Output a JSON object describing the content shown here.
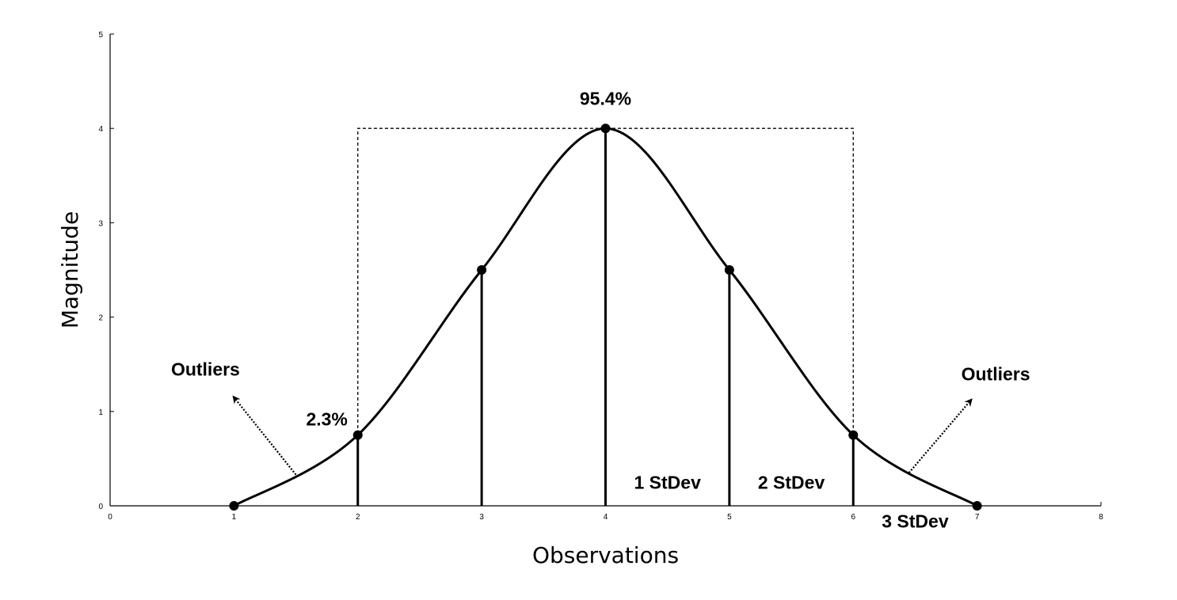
{
  "chart_data": {
    "type": "line",
    "title": "",
    "xlabel": "Observations",
    "ylabel": "Magnitude",
    "xlim": [
      0,
      8
    ],
    "ylim": [
      0,
      5
    ],
    "x_ticks": [
      0,
      1,
      2,
      3,
      4,
      5,
      6,
      7,
      8
    ],
    "y_ticks": [
      0,
      1,
      2,
      3,
      4,
      5
    ],
    "grid": false,
    "series": [
      {
        "points": [
          [
            1,
            0
          ],
          [
            2,
            0.75
          ],
          [
            3,
            2.5
          ],
          [
            4,
            4
          ],
          [
            5,
            2.5
          ],
          [
            6,
            0.75
          ],
          [
            7,
            0
          ]
        ]
      }
    ],
    "vertical_lines": [
      2,
      3,
      4,
      5,
      6
    ],
    "dashed_box": {
      "x": [
        2,
        6
      ],
      "y_top": 4
    },
    "annotations": [
      {
        "text": "95.4%",
        "x": 4,
        "y": 4.25
      },
      {
        "text": "2.3%",
        "x": 1.75,
        "y": 0.85
      },
      {
        "text": "1 StDev",
        "x": 4.5,
        "y": 0.18
      },
      {
        "text": "2 StDev",
        "x": 5.5,
        "y": 0.18
      },
      {
        "text": "3 StDev",
        "x": 6.5,
        "y": -0.23
      },
      {
        "text": "Outliers",
        "x": 0.77,
        "y": 1.38
      },
      {
        "text": "Outliers",
        "x": 7.15,
        "y": 1.33
      }
    ],
    "arrows": [
      {
        "from": [
          1.5,
          0.33
        ],
        "to": [
          1.0,
          1.15
        ]
      },
      {
        "from": [
          6.45,
          0.35
        ],
        "to": [
          6.95,
          1.12
        ]
      }
    ]
  }
}
